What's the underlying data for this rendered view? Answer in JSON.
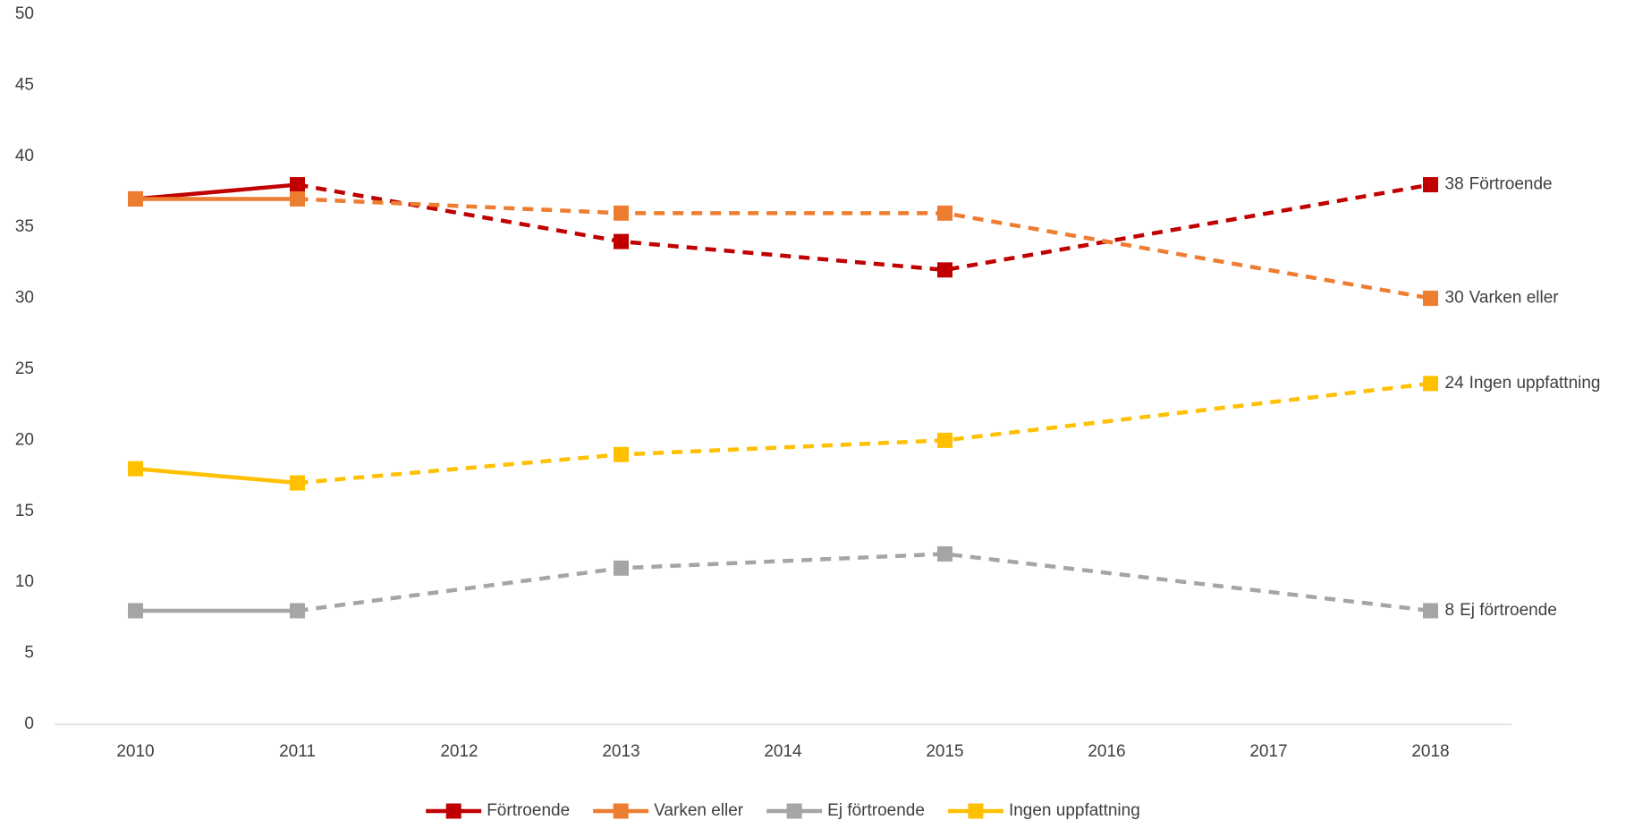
{
  "chart_data": {
    "type": "line",
    "x": [
      2010,
      2011,
      2013,
      2015,
      2018
    ],
    "xlim": [
      2009.5,
      2018.5
    ],
    "xticks": [
      2010,
      2011,
      2012,
      2013,
      2014,
      2015,
      2016,
      2017,
      2018
    ],
    "ylim": [
      0,
      50
    ],
    "yticks": [
      0,
      5,
      10,
      15,
      20,
      25,
      30,
      35,
      40,
      45,
      50
    ],
    "grid": false,
    "legend": "bottom",
    "dashed_after": 2011,
    "series": [
      {
        "name": "Förtroende",
        "color": "#c00000",
        "values": [
          37,
          38,
          34,
          32,
          38
        ]
      },
      {
        "name": "Varken eller",
        "color": "#ed7d31",
        "values": [
          37,
          37,
          36,
          36,
          30
        ]
      },
      {
        "name": "Ej förtroende",
        "color": "#a5a5a5",
        "values": [
          8,
          8,
          11,
          12,
          8
        ]
      },
      {
        "name": "Ingen uppfattning",
        "color": "#ffc000",
        "values": [
          18,
          17,
          19,
          20,
          24
        ]
      }
    ]
  }
}
